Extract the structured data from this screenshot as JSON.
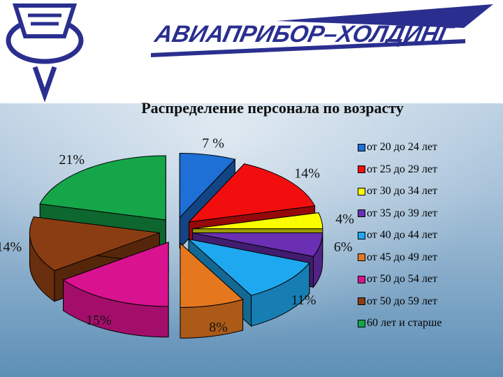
{
  "header": {
    "brand_text": "АВИАПРИБОР–ХОЛДИНГ"
  },
  "colors": {
    "sky_top": "#d7e4ef",
    "sky_bottom": "#5d8fb6",
    "brand_blue": "#2a2f8f"
  },
  "chart_data": {
    "type": "pie",
    "title": "Распределение персонала по возрасту",
    "legend_position": "right",
    "legend": [
      "от 20 до 24 лет",
      "от 25 до 29 лет",
      "от 30 до 34 лет",
      "от 35 до 39 лет",
      "от 40 до 44 лет",
      "от 45 до 49 лет",
      "от 50 до 54 лет",
      "от 50 до 59 лет",
      "60 лет и старше"
    ],
    "slices": [
      {
        "label": "от 20 до 24 лет",
        "value": 7,
        "display": "7 %",
        "color": "#1e6fd6"
      },
      {
        "label": "от 25 до 29 лет",
        "value": 14,
        "display": "14%",
        "color": "#f20e0e"
      },
      {
        "label": "от 30 до 34 лет",
        "value": 4,
        "display": "4%",
        "color": "#fafc00"
      },
      {
        "label": "от 35 до 39 лет",
        "value": 6,
        "display": "6%",
        "color": "#6a2fb3"
      },
      {
        "label": "от 40 до 44 лет",
        "value": 11,
        "display": "11%",
        "color": "#1ea8ef"
      },
      {
        "label": "от 45 до 49 лет",
        "value": 8,
        "display": "8%",
        "color": "#e5781f"
      },
      {
        "label": "от 50 до 54 лет",
        "value": 15,
        "display": "15%",
        "color": "#d9138f"
      },
      {
        "label": "от 50 до 59 лет",
        "value": 14,
        "display": "14%",
        "color": "#8a3d12"
      },
      {
        "label": "60 лет и старше",
        "value": 21,
        "display": "21%",
        "color": "#15a64a"
      }
    ]
  }
}
